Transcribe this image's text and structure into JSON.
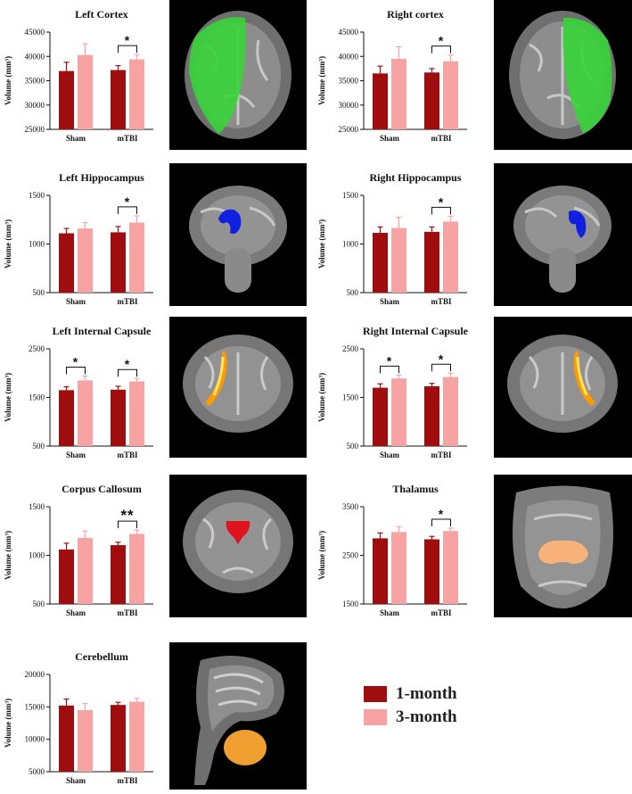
{
  "legend": {
    "items": [
      {
        "label": "1-month",
        "color": "#a00d0e"
      },
      {
        "label": "3-month",
        "color": "#f7a3a3"
      }
    ]
  },
  "chart_data": [
    {
      "type": "bar",
      "title": "Left Cortex",
      "ylabel": "Volume (mm³)",
      "categories": [
        "Sham",
        "mTBI"
      ],
      "ylim": [
        25000,
        45000
      ],
      "yticks": [
        "25000",
        "30000",
        "35000",
        "40000",
        "45000"
      ],
      "series": [
        {
          "name": "1-month",
          "values": [
            37000,
            37200
          ],
          "errors": [
            1800,
            900
          ]
        },
        {
          "name": "3-month",
          "values": [
            40300,
            39400
          ],
          "errors": [
            2300,
            1000
          ]
        }
      ],
      "significance": [
        {
          "category": "mTBI",
          "label": "*"
        }
      ]
    },
    {
      "type": "bar",
      "title": "Right cortex",
      "ylabel": "Volume (mm³)",
      "categories": [
        "Sham",
        "mTBI"
      ],
      "ylim": [
        25000,
        45000
      ],
      "yticks": [
        "25000",
        "30000",
        "35000",
        "40000",
        "45000"
      ],
      "series": [
        {
          "name": "1-month",
          "values": [
            36500,
            36700
          ],
          "errors": [
            1500,
            800
          ]
        },
        {
          "name": "3-month",
          "values": [
            39500,
            39000
          ],
          "errors": [
            2500,
            1300
          ]
        }
      ],
      "significance": [
        {
          "category": "mTBI",
          "label": "*"
        }
      ]
    },
    {
      "type": "bar",
      "title": "Left Hippocampus",
      "ylabel": "Volume (mm³)",
      "categories": [
        "Sham",
        "mTBI"
      ],
      "ylim": [
        500,
        1500
      ],
      "yticks": [
        "500",
        "1000",
        "1500"
      ],
      "series": [
        {
          "name": "1-month",
          "values": [
            1110,
            1120
          ],
          "errors": [
            50,
            60
          ]
        },
        {
          "name": "3-month",
          "values": [
            1160,
            1220
          ],
          "errors": [
            60,
            70
          ]
        }
      ],
      "significance": [
        {
          "category": "mTBI",
          "label": "*"
        }
      ]
    },
    {
      "type": "bar",
      "title": "Right Hippocampus",
      "ylabel": "Volume (mm³)",
      "categories": [
        "Sham",
        "mTBI"
      ],
      "ylim": [
        500,
        1500
      ],
      "yticks": [
        "500",
        "1000",
        "1500"
      ],
      "series": [
        {
          "name": "1-month",
          "values": [
            1115,
            1125
          ],
          "errors": [
            60,
            50
          ]
        },
        {
          "name": "3-month",
          "values": [
            1165,
            1230
          ],
          "errors": [
            110,
            55
          ]
        }
      ],
      "significance": [
        {
          "category": "mTBI",
          "label": "*"
        }
      ]
    },
    {
      "type": "bar",
      "title": "Left Internal Capsule",
      "ylabel": "Volume (mm³)",
      "categories": [
        "Sham",
        "mTBI"
      ],
      "ylim": [
        500,
        2500
      ],
      "yticks": [
        "500",
        "1500",
        "2500"
      ],
      "series": [
        {
          "name": "1-month",
          "values": [
            1650,
            1660
          ],
          "errors": [
            70,
            70
          ]
        },
        {
          "name": "3-month",
          "values": [
            1850,
            1830
          ],
          "errors": [
            90,
            60
          ]
        }
      ],
      "significance": [
        {
          "category": "Sham",
          "label": "*"
        },
        {
          "category": "mTBI",
          "label": "*"
        }
      ]
    },
    {
      "type": "bar",
      "title": "Right Internal Capsule",
      "ylabel": "Volume (mm³)",
      "categories": [
        "Sham",
        "mTBI"
      ],
      "ylim": [
        500,
        2500
      ],
      "yticks": [
        "500",
        "1500",
        "2500"
      ],
      "series": [
        {
          "name": "1-month",
          "values": [
            1700,
            1730
          ],
          "errors": [
            80,
            60
          ]
        },
        {
          "name": "3-month",
          "values": [
            1890,
            1920
          ],
          "errors": [
            70,
            80
          ]
        }
      ],
      "significance": [
        {
          "category": "Sham",
          "label": "*"
        },
        {
          "category": "mTBI",
          "label": "*"
        }
      ]
    },
    {
      "type": "bar",
      "title": "Corpus Callosum",
      "ylabel": "Volume (mm³)",
      "categories": [
        "Sham",
        "mTBI"
      ],
      "ylim": [
        500,
        1500
      ],
      "yticks": [
        "500",
        "1000",
        "1500"
      ],
      "series": [
        {
          "name": "1-month",
          "values": [
            1060,
            1105
          ],
          "errors": [
            65,
            30
          ]
        },
        {
          "name": "3-month",
          "values": [
            1180,
            1220
          ],
          "errors": [
            70,
            40
          ]
        }
      ],
      "significance": [
        {
          "category": "mTBI",
          "label": "**"
        }
      ]
    },
    {
      "type": "bar",
      "title": "Thalamus",
      "ylabel": "Volume (mm³)",
      "categories": [
        "Sham",
        "mTBI"
      ],
      "ylim": [
        1500,
        3500
      ],
      "yticks": [
        "1500",
        "2500",
        "3500"
      ],
      "series": [
        {
          "name": "1-month",
          "values": [
            2850,
            2830
          ],
          "errors": [
            110,
            60
          ]
        },
        {
          "name": "3-month",
          "values": [
            2980,
            3000
          ],
          "errors": [
            110,
            60
          ]
        }
      ],
      "significance": [
        {
          "category": "mTBI",
          "label": "*"
        }
      ]
    },
    {
      "type": "bar",
      "title": "Cerebellum",
      "ylabel": "Volume (mm³)",
      "categories": [
        "Sham",
        "mTBI"
      ],
      "ylim": [
        5000,
        20000
      ],
      "yticks": [
        "5000",
        "10000",
        "15000",
        "20000"
      ],
      "series": [
        {
          "name": "1-month",
          "values": [
            15200,
            15300
          ],
          "errors": [
            1000,
            400
          ]
        },
        {
          "name": "3-month",
          "values": [
            14500,
            15800
          ],
          "errors": [
            1000,
            500
          ]
        }
      ],
      "significance": []
    }
  ],
  "images": [
    {
      "structure": "left-cortex",
      "color": "#39d43a"
    },
    {
      "structure": "right-cortex",
      "color": "#39d43a"
    },
    {
      "structure": "left-hippocampus",
      "color": "#1020e0"
    },
    {
      "structure": "right-hippocampus",
      "color": "#1020e0"
    },
    {
      "structure": "left-internal-capsule",
      "color": "#ffb000"
    },
    {
      "structure": "right-internal-capsule",
      "color": "#ffb000"
    },
    {
      "structure": "corpus-callosum",
      "color": "#e0141e"
    },
    {
      "structure": "thalamus",
      "color": "#f7b27a"
    },
    {
      "structure": "cerebellum",
      "color": "#f0a030"
    }
  ]
}
